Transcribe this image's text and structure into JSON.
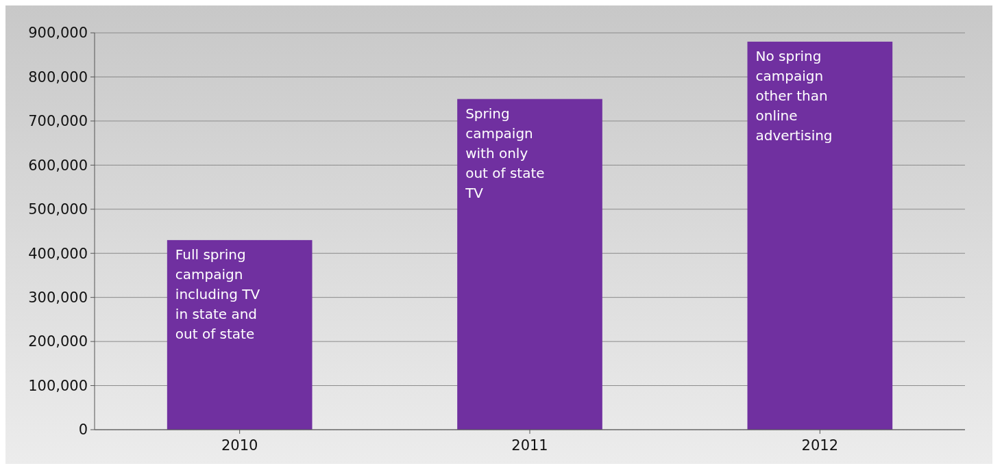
{
  "chart_data": {
    "type": "bar",
    "categories": [
      "2010",
      "2011",
      "2012"
    ],
    "values": [
      430000,
      750000,
      880000
    ],
    "color": "#7030a0",
    "ylim": [
      0,
      900000
    ],
    "yticks": [
      {
        "value": 0,
        "label": "0"
      },
      {
        "value": 100000,
        "label": "100,000"
      },
      {
        "value": 200000,
        "label": "200,000"
      },
      {
        "value": 300000,
        "label": "300,000"
      },
      {
        "value": 400000,
        "label": "400,000"
      },
      {
        "value": 500000,
        "label": "500,000"
      },
      {
        "value": 600000,
        "label": "600,000"
      },
      {
        "value": 700000,
        "label": "700,000"
      },
      {
        "value": 800000,
        "label": "800,000"
      },
      {
        "value": 900000,
        "label": "900,000"
      }
    ],
    "grid": "y",
    "annotations": [
      {
        "text": "Full spring campaign including TV in state and out of state",
        "x": "2010",
        "y": 430000
      },
      {
        "text": "Spring campaign with only out of state TV",
        "x": "2011",
        "y": 750000
      },
      {
        "text": "No spring campaign other than online advertising",
        "x": "2012",
        "y": 880000
      }
    ]
  }
}
